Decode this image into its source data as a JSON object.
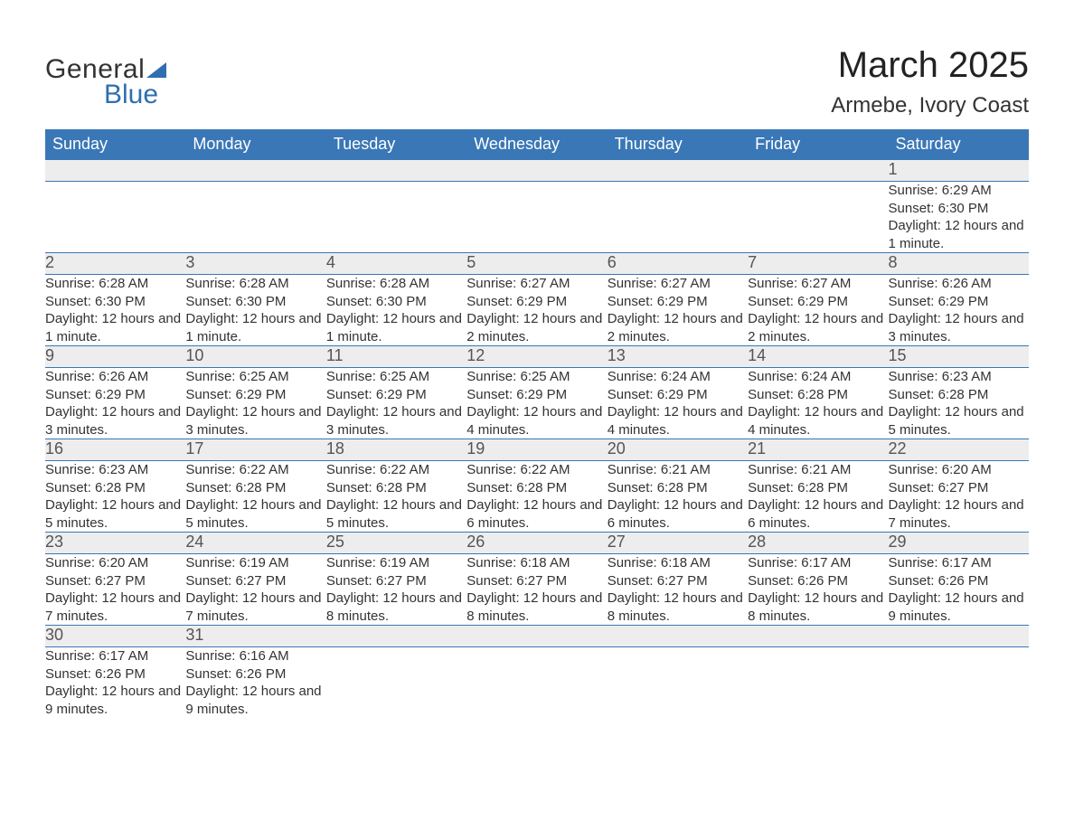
{
  "logo": {
    "line1": "General",
    "line2": "Blue"
  },
  "header": {
    "month": "March 2025",
    "location": "Armebe, Ivory Coast"
  },
  "calendar": {
    "type": "table",
    "header_bg": "#3a77b6",
    "header_text_color": "#ffffff",
    "daynum_bg": "#ededed",
    "row_divider_color": "#3a77b6",
    "body_bg": "#ffffff",
    "text_color": "#333333",
    "columns": [
      "Sunday",
      "Monday",
      "Tuesday",
      "Wednesday",
      "Thursday",
      "Friday",
      "Saturday"
    ],
    "weeks": [
      [
        null,
        null,
        null,
        null,
        null,
        null,
        {
          "d": "1",
          "sunrise": "Sunrise: 6:29 AM",
          "sunset": "Sunset: 6:30 PM",
          "daylight": "Daylight: 12 hours and 1 minute."
        }
      ],
      [
        {
          "d": "2",
          "sunrise": "Sunrise: 6:28 AM",
          "sunset": "Sunset: 6:30 PM",
          "daylight": "Daylight: 12 hours and 1 minute."
        },
        {
          "d": "3",
          "sunrise": "Sunrise: 6:28 AM",
          "sunset": "Sunset: 6:30 PM",
          "daylight": "Daylight: 12 hours and 1 minute."
        },
        {
          "d": "4",
          "sunrise": "Sunrise: 6:28 AM",
          "sunset": "Sunset: 6:30 PM",
          "daylight": "Daylight: 12 hours and 1 minute."
        },
        {
          "d": "5",
          "sunrise": "Sunrise: 6:27 AM",
          "sunset": "Sunset: 6:29 PM",
          "daylight": "Daylight: 12 hours and 2 minutes."
        },
        {
          "d": "6",
          "sunrise": "Sunrise: 6:27 AM",
          "sunset": "Sunset: 6:29 PM",
          "daylight": "Daylight: 12 hours and 2 minutes."
        },
        {
          "d": "7",
          "sunrise": "Sunrise: 6:27 AM",
          "sunset": "Sunset: 6:29 PM",
          "daylight": "Daylight: 12 hours and 2 minutes."
        },
        {
          "d": "8",
          "sunrise": "Sunrise: 6:26 AM",
          "sunset": "Sunset: 6:29 PM",
          "daylight": "Daylight: 12 hours and 3 minutes."
        }
      ],
      [
        {
          "d": "9",
          "sunrise": "Sunrise: 6:26 AM",
          "sunset": "Sunset: 6:29 PM",
          "daylight": "Daylight: 12 hours and 3 minutes."
        },
        {
          "d": "10",
          "sunrise": "Sunrise: 6:25 AM",
          "sunset": "Sunset: 6:29 PM",
          "daylight": "Daylight: 12 hours and 3 minutes."
        },
        {
          "d": "11",
          "sunrise": "Sunrise: 6:25 AM",
          "sunset": "Sunset: 6:29 PM",
          "daylight": "Daylight: 12 hours and 3 minutes."
        },
        {
          "d": "12",
          "sunrise": "Sunrise: 6:25 AM",
          "sunset": "Sunset: 6:29 PM",
          "daylight": "Daylight: 12 hours and 4 minutes."
        },
        {
          "d": "13",
          "sunrise": "Sunrise: 6:24 AM",
          "sunset": "Sunset: 6:29 PM",
          "daylight": "Daylight: 12 hours and 4 minutes."
        },
        {
          "d": "14",
          "sunrise": "Sunrise: 6:24 AM",
          "sunset": "Sunset: 6:28 PM",
          "daylight": "Daylight: 12 hours and 4 minutes."
        },
        {
          "d": "15",
          "sunrise": "Sunrise: 6:23 AM",
          "sunset": "Sunset: 6:28 PM",
          "daylight": "Daylight: 12 hours and 5 minutes."
        }
      ],
      [
        {
          "d": "16",
          "sunrise": "Sunrise: 6:23 AM",
          "sunset": "Sunset: 6:28 PM",
          "daylight": "Daylight: 12 hours and 5 minutes."
        },
        {
          "d": "17",
          "sunrise": "Sunrise: 6:22 AM",
          "sunset": "Sunset: 6:28 PM",
          "daylight": "Daylight: 12 hours and 5 minutes."
        },
        {
          "d": "18",
          "sunrise": "Sunrise: 6:22 AM",
          "sunset": "Sunset: 6:28 PM",
          "daylight": "Daylight: 12 hours and 5 minutes."
        },
        {
          "d": "19",
          "sunrise": "Sunrise: 6:22 AM",
          "sunset": "Sunset: 6:28 PM",
          "daylight": "Daylight: 12 hours and 6 minutes."
        },
        {
          "d": "20",
          "sunrise": "Sunrise: 6:21 AM",
          "sunset": "Sunset: 6:28 PM",
          "daylight": "Daylight: 12 hours and 6 minutes."
        },
        {
          "d": "21",
          "sunrise": "Sunrise: 6:21 AM",
          "sunset": "Sunset: 6:28 PM",
          "daylight": "Daylight: 12 hours and 6 minutes."
        },
        {
          "d": "22",
          "sunrise": "Sunrise: 6:20 AM",
          "sunset": "Sunset: 6:27 PM",
          "daylight": "Daylight: 12 hours and 7 minutes."
        }
      ],
      [
        {
          "d": "23",
          "sunrise": "Sunrise: 6:20 AM",
          "sunset": "Sunset: 6:27 PM",
          "daylight": "Daylight: 12 hours and 7 minutes."
        },
        {
          "d": "24",
          "sunrise": "Sunrise: 6:19 AM",
          "sunset": "Sunset: 6:27 PM",
          "daylight": "Daylight: 12 hours and 7 minutes."
        },
        {
          "d": "25",
          "sunrise": "Sunrise: 6:19 AM",
          "sunset": "Sunset: 6:27 PM",
          "daylight": "Daylight: 12 hours and 8 minutes."
        },
        {
          "d": "26",
          "sunrise": "Sunrise: 6:18 AM",
          "sunset": "Sunset: 6:27 PM",
          "daylight": "Daylight: 12 hours and 8 minutes."
        },
        {
          "d": "27",
          "sunrise": "Sunrise: 6:18 AM",
          "sunset": "Sunset: 6:27 PM",
          "daylight": "Daylight: 12 hours and 8 minutes."
        },
        {
          "d": "28",
          "sunrise": "Sunrise: 6:17 AM",
          "sunset": "Sunset: 6:26 PM",
          "daylight": "Daylight: 12 hours and 8 minutes."
        },
        {
          "d": "29",
          "sunrise": "Sunrise: 6:17 AM",
          "sunset": "Sunset: 6:26 PM",
          "daylight": "Daylight: 12 hours and 9 minutes."
        }
      ],
      [
        {
          "d": "30",
          "sunrise": "Sunrise: 6:17 AM",
          "sunset": "Sunset: 6:26 PM",
          "daylight": "Daylight: 12 hours and 9 minutes."
        },
        {
          "d": "31",
          "sunrise": "Sunrise: 6:16 AM",
          "sunset": "Sunset: 6:26 PM",
          "daylight": "Daylight: 12 hours and 9 minutes."
        },
        null,
        null,
        null,
        null,
        null
      ]
    ]
  }
}
